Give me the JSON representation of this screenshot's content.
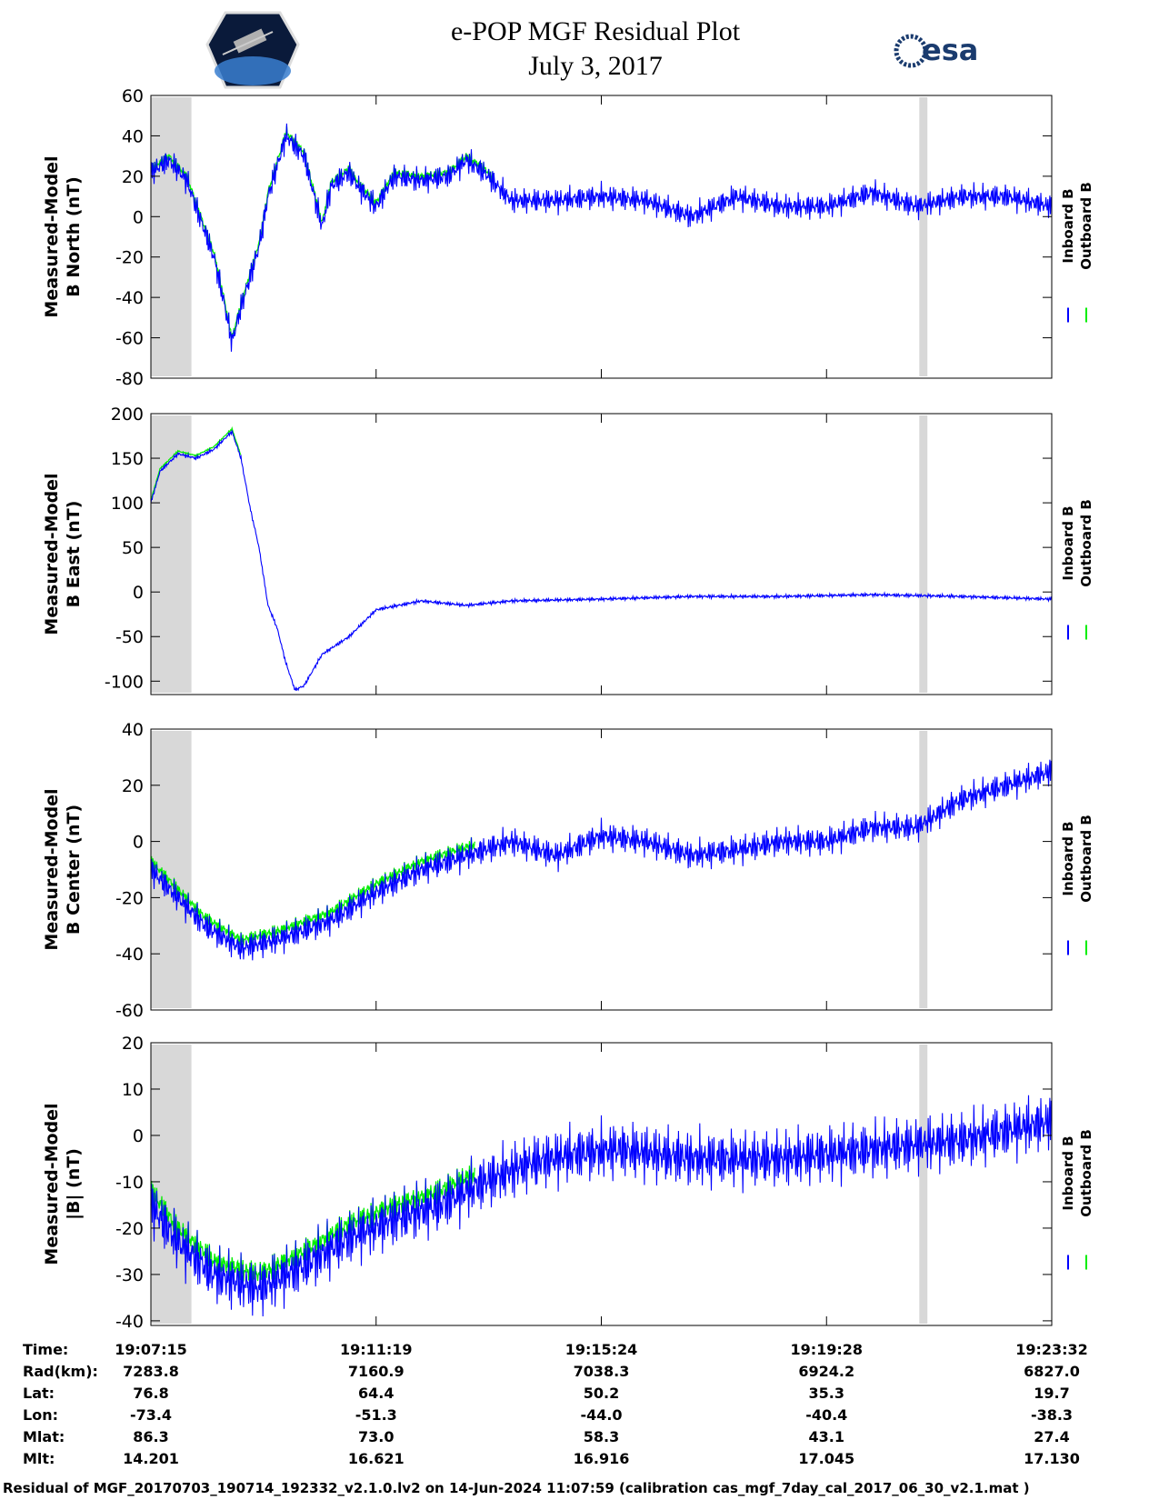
{
  "header": {
    "title": "e-POP MGF Residual Plot",
    "date": "July 3, 2017",
    "logo_left_name": "CASSIOPE",
    "logo_right_text": "esa"
  },
  "legend": {
    "inboard": "Inboard B",
    "outboard": "Outboard B"
  },
  "colors": {
    "inboard": "#0000ff",
    "outboard": "#00ee00",
    "shade": "#d8d8d8",
    "axis": "#000000"
  },
  "chart_data": [
    {
      "type": "line",
      "ylabel_line1": "Measured-Model",
      "ylabel_line2": "B North (nT)",
      "ylim": [
        -80,
        60
      ],
      "yticks": [
        60,
        40,
        20,
        0,
        -20,
        -40,
        -60,
        -80
      ],
      "noise": 6,
      "outboard_offset": 2,
      "outboard_until": 0.38,
      "series": [
        {
          "values": [
            [
              0,
              22
            ],
            [
              0.02,
              28
            ],
            [
              0.04,
              18
            ],
            [
              0.05,
              5
            ],
            [
              0.07,
              -20
            ],
            [
              0.08,
              -40
            ],
            [
              0.09,
              -62
            ],
            [
              0.1,
              -45
            ],
            [
              0.12,
              -15
            ],
            [
              0.13,
              10
            ],
            [
              0.15,
              40
            ],
            [
              0.17,
              30
            ],
            [
              0.19,
              -5
            ],
            [
              0.2,
              15
            ],
            [
              0.22,
              22
            ],
            [
              0.23,
              15
            ],
            [
              0.25,
              5
            ],
            [
              0.27,
              20
            ],
            [
              0.3,
              18
            ],
            [
              0.33,
              20
            ],
            [
              0.35,
              28
            ],
            [
              0.37,
              22
            ],
            [
              0.4,
              8
            ],
            [
              0.45,
              8
            ],
            [
              0.5,
              10
            ],
            [
              0.55,
              8
            ],
            [
              0.6,
              0
            ],
            [
              0.65,
              10
            ],
            [
              0.7,
              5
            ],
            [
              0.75,
              5
            ],
            [
              0.8,
              12
            ],
            [
              0.85,
              5
            ],
            [
              0.9,
              10
            ],
            [
              0.95,
              10
            ],
            [
              1,
              5
            ]
          ]
        }
      ]
    },
    {
      "type": "line",
      "ylabel_line1": "Measured-Model",
      "ylabel_line2": "B East (nT)",
      "ylim": [
        -115,
        200
      ],
      "yticks": [
        200,
        150,
        100,
        50,
        0,
        -50,
        -100
      ],
      "noise": 2,
      "outboard_offset": 3,
      "outboard_until": 0.1,
      "series": [
        {
          "values": [
            [
              0,
              100
            ],
            [
              0.01,
              135
            ],
            [
              0.03,
              155
            ],
            [
              0.05,
              150
            ],
            [
              0.07,
              160
            ],
            [
              0.09,
              180
            ],
            [
              0.1,
              150
            ],
            [
              0.11,
              95
            ],
            [
              0.12,
              50
            ],
            [
              0.13,
              -15
            ],
            [
              0.14,
              -40
            ],
            [
              0.15,
              -80
            ],
            [
              0.16,
              -110
            ],
            [
              0.17,
              -105
            ],
            [
              0.19,
              -70
            ],
            [
              0.22,
              -50
            ],
            [
              0.25,
              -20
            ],
            [
              0.3,
              -10
            ],
            [
              0.35,
              -15
            ],
            [
              0.4,
              -10
            ],
            [
              0.5,
              -8
            ],
            [
              0.6,
              -5
            ],
            [
              0.7,
              -5
            ],
            [
              0.8,
              -3
            ],
            [
              0.9,
              -5
            ],
            [
              1,
              -8
            ]
          ]
        }
      ]
    },
    {
      "type": "line",
      "ylabel_line1": "Measured-Model",
      "ylabel_line2": "B Center (nT)",
      "ylim": [
        -60,
        40
      ],
      "yticks": [
        40,
        20,
        0,
        -20,
        -40,
        -60
      ],
      "noise": 5,
      "outboard_offset": 3,
      "outboard_until": 0.36,
      "series": [
        {
          "values": [
            [
              0,
              -10
            ],
            [
              0.03,
              -20
            ],
            [
              0.06,
              -30
            ],
            [
              0.1,
              -38
            ],
            [
              0.14,
              -35
            ],
            [
              0.2,
              -28
            ],
            [
              0.25,
              -18
            ],
            [
              0.3,
              -10
            ],
            [
              0.35,
              -5
            ],
            [
              0.4,
              0
            ],
            [
              0.45,
              -5
            ],
            [
              0.5,
              2
            ],
            [
              0.55,
              0
            ],
            [
              0.6,
              -5
            ],
            [
              0.65,
              -3
            ],
            [
              0.7,
              0
            ],
            [
              0.75,
              0
            ],
            [
              0.8,
              5
            ],
            [
              0.85,
              5
            ],
            [
              0.9,
              15
            ],
            [
              0.95,
              20
            ],
            [
              1,
              25
            ]
          ]
        }
      ]
    },
    {
      "type": "line",
      "ylabel_line1": "Measured-Model",
      "ylabel_line2": "|B| (nT)",
      "ylim": [
        -41,
        20
      ],
      "yticks": [
        20,
        10,
        0,
        -10,
        -20,
        -30,
        -40
      ],
      "noise": 6,
      "outboard_offset": 3,
      "outboard_until": 0.36,
      "series": [
        {
          "values": [
            [
              0,
              -15
            ],
            [
              0.03,
              -23
            ],
            [
              0.07,
              -30
            ],
            [
              0.12,
              -33
            ],
            [
              0.17,
              -28
            ],
            [
              0.22,
              -22
            ],
            [
              0.27,
              -18
            ],
            [
              0.32,
              -15
            ],
            [
              0.37,
              -10
            ],
            [
              0.42,
              -6
            ],
            [
              0.47,
              -4
            ],
            [
              0.52,
              -3
            ],
            [
              0.6,
              -5
            ],
            [
              0.7,
              -5
            ],
            [
              0.8,
              -3
            ],
            [
              0.9,
              -1
            ],
            [
              1,
              3
            ]
          ]
        }
      ]
    }
  ],
  "shade_regions": [
    [
      0,
      0.045
    ],
    [
      0.853,
      0.862
    ]
  ],
  "xticks": [
    0,
    0.25,
    0.5,
    0.75,
    1
  ],
  "table": {
    "rows": [
      {
        "label": "Time:",
        "values": [
          "19:07:15",
          "19:11:19",
          "19:15:24",
          "19:19:28",
          "19:23:32"
        ]
      },
      {
        "label": "Rad(km):",
        "values": [
          "7283.8",
          "7160.9",
          "7038.3",
          "6924.2",
          "6827.0"
        ]
      },
      {
        "label": "Lat:",
        "values": [
          "76.8",
          "64.4",
          "50.2",
          "35.3",
          "19.7"
        ]
      },
      {
        "label": "Lon:",
        "values": [
          "-73.4",
          "-51.3",
          "-44.0",
          "-40.4",
          "-38.3"
        ]
      },
      {
        "label": "Mlat:",
        "values": [
          "86.3",
          "73.0",
          "58.3",
          "43.1",
          "27.4"
        ]
      },
      {
        "label": "Mlt:",
        "values": [
          "14.201",
          "16.621",
          "16.916",
          "17.045",
          "17.130"
        ]
      }
    ]
  },
  "footer": "Residual of MGF_20170703_190714_192332_v2.1.0.lv2 on 14-Jun-2024 11:07:59 (calibration cas_mgf_7day_cal_2017_06_30_v2.1.mat )"
}
